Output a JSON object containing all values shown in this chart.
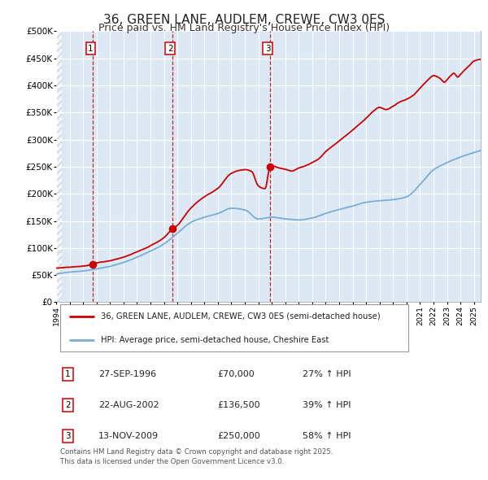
{
  "title": "36, GREEN LANE, AUDLEM, CREWE, CW3 0ES",
  "subtitle": "Price paid vs. HM Land Registry's House Price Index (HPI)",
  "title_fontsize": 11,
  "subtitle_fontsize": 9,
  "plot_bg_color": "#dce9f5",
  "outer_bg_color": "#ffffff",
  "red_line_color": "#cc0000",
  "blue_line_color": "#7aadd4",
  "grid_color": "#ffffff",
  "sale_points": [
    {
      "date_num": 1996.74,
      "price": 70000,
      "label": "1",
      "date_str": "27-SEP-1996",
      "price_str": "£70,000",
      "hpi_pct": "27% ↑ HPI"
    },
    {
      "date_num": 2002.64,
      "price": 136500,
      "label": "2",
      "date_str": "22-AUG-2002",
      "price_str": "£136,500",
      "hpi_pct": "39% ↑ HPI"
    },
    {
      "date_num": 2009.87,
      "price": 250000,
      "label": "3",
      "date_str": "13-NOV-2009",
      "price_str": "£250,000",
      "hpi_pct": "58% ↑ HPI"
    }
  ],
  "vline_color": "#cc0000",
  "marker_color": "#cc0000",
  "marker_size": 7,
  "ylim": [
    0,
    500000
  ],
  "xlim_start": 1994.0,
  "xlim_end": 2025.5,
  "yticks": [
    0,
    50000,
    100000,
    150000,
    200000,
    250000,
    300000,
    350000,
    400000,
    450000,
    500000
  ],
  "ytick_labels": [
    "£0",
    "£50K",
    "£100K",
    "£150K",
    "£200K",
    "£250K",
    "£300K",
    "£350K",
    "£400K",
    "£450K",
    "£500K"
  ],
  "xtick_years": [
    1994,
    1995,
    1996,
    1997,
    1998,
    1999,
    2000,
    2001,
    2002,
    2003,
    2004,
    2005,
    2006,
    2007,
    2008,
    2009,
    2010,
    2011,
    2012,
    2013,
    2014,
    2015,
    2016,
    2017,
    2018,
    2019,
    2020,
    2021,
    2022,
    2023,
    2024,
    2025
  ],
  "legend_red_label": "36, GREEN LANE, AUDLEM, CREWE, CW3 0ES (semi-detached house)",
  "legend_blue_label": "HPI: Average price, semi-detached house, Cheshire East",
  "footer_text": "Contains HM Land Registry data © Crown copyright and database right 2025.\nThis data is licensed under the Open Government Licence v3.0."
}
